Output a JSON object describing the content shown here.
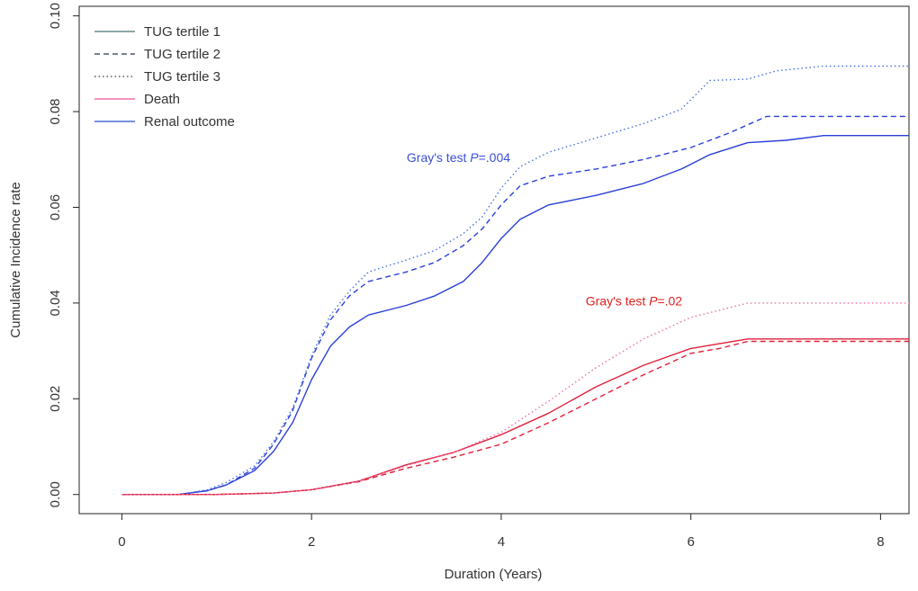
{
  "chart_data": {
    "type": "line",
    "title": "",
    "xlabel": "Duration (Years)",
    "ylabel": "Cumulative Incidence rate",
    "xlim": [
      -0.45,
      8.3
    ],
    "ylim": [
      -0.004,
      0.102
    ],
    "x_ticks": [
      0,
      2,
      4,
      6,
      8
    ],
    "x_tick_labels": [
      "0",
      "2",
      "4",
      "6",
      "8"
    ],
    "y_ticks": [
      0.0,
      0.02,
      0.04,
      0.06,
      0.08,
      0.1
    ],
    "y_tick_labels": [
      "0.00",
      "0.02",
      "0.04",
      "0.06",
      "0.08",
      "0.10"
    ],
    "grid": false,
    "legend_position": "top-left",
    "legend": [
      {
        "label": "TUG tertile 1",
        "color": "#6f8a8c",
        "dash": "solid"
      },
      {
        "label": "TUG tertile 2",
        "color": "#4a5a6a",
        "dash": "dashed"
      },
      {
        "label": "TUG tertile 3",
        "color": "#4a5a6a",
        "dash": "dotted"
      },
      {
        "label": "Death",
        "color": "#ee6fa8",
        "dash": "solid"
      },
      {
        "label": "Renal outcome",
        "color": "#4a6fd8",
        "dash": "solid"
      }
    ],
    "annotations": [
      {
        "prefix": "Gray's test ",
        "italic": "P",
        "suffix": "=.004",
        "color": "#3a4fd8",
        "x": 3.55,
        "y": 0.0695
      },
      {
        "prefix": "Gray's test ",
        "italic": "P",
        "suffix": "=.02",
        "color": "#e02020",
        "x": 5.4,
        "y": 0.0395
      }
    ],
    "series": [
      {
        "name": "Renal outcome - TUG tertile 1",
        "color": "#2a3fd8",
        "dash": "solid",
        "x": [
          0,
          0.6,
          0.9,
          1.1,
          1.4,
          1.6,
          1.8,
          2.0,
          2.2,
          2.4,
          2.6,
          3.0,
          3.3,
          3.6,
          3.8,
          4.0,
          4.2,
          4.5,
          5.0,
          5.5,
          5.9,
          6.2,
          6.6,
          7.0,
          7.4,
          8.3
        ],
        "y": [
          0,
          0,
          0.0008,
          0.002,
          0.005,
          0.009,
          0.015,
          0.024,
          0.031,
          0.035,
          0.0375,
          0.0395,
          0.0415,
          0.0445,
          0.0485,
          0.0535,
          0.0575,
          0.0605,
          0.0625,
          0.065,
          0.068,
          0.071,
          0.0735,
          0.074,
          0.075,
          0.075
        ]
      },
      {
        "name": "Renal outcome - TUG tertile 2",
        "color": "#2a3fd8",
        "dash": "dashed",
        "x": [
          0,
          0.6,
          0.9,
          1.1,
          1.4,
          1.6,
          1.8,
          2.0,
          2.2,
          2.4,
          2.6,
          3.0,
          3.3,
          3.6,
          3.8,
          4.0,
          4.2,
          4.5,
          5.0,
          5.5,
          6.0,
          6.4,
          6.8,
          7.2,
          8.3
        ],
        "y": [
          0,
          0,
          0.0008,
          0.002,
          0.0055,
          0.0105,
          0.0175,
          0.0285,
          0.0365,
          0.0415,
          0.0445,
          0.0465,
          0.0485,
          0.052,
          0.0555,
          0.0605,
          0.0645,
          0.0665,
          0.068,
          0.07,
          0.0725,
          0.0755,
          0.079,
          0.079,
          0.079
        ]
      },
      {
        "name": "Renal outcome - TUG tertile 3",
        "color": "#4a6fe0",
        "dash": "dotted",
        "x": [
          0,
          0.6,
          0.9,
          1.1,
          1.4,
          1.6,
          1.8,
          2.0,
          2.2,
          2.4,
          2.6,
          3.0,
          3.3,
          3.6,
          3.8,
          4.0,
          4.2,
          4.5,
          5.0,
          5.5,
          5.9,
          6.2,
          6.6,
          6.9,
          7.4,
          8.3
        ],
        "y": [
          0,
          0,
          0.001,
          0.0025,
          0.006,
          0.011,
          0.018,
          0.029,
          0.0375,
          0.0425,
          0.0465,
          0.049,
          0.051,
          0.0545,
          0.058,
          0.064,
          0.0685,
          0.0715,
          0.0745,
          0.0775,
          0.0805,
          0.0865,
          0.0868,
          0.0885,
          0.0895,
          0.0895
        ]
      },
      {
        "name": "Death - TUG tertile 1",
        "color": "#e0203a",
        "dash": "solid",
        "x": [
          0,
          1.0,
          1.6,
          2.0,
          2.5,
          3.0,
          3.5,
          4.0,
          4.5,
          5.0,
          5.5,
          6.0,
          6.3,
          6.6,
          8.3
        ],
        "y": [
          0,
          0,
          0.0003,
          0.001,
          0.0028,
          0.0062,
          0.0088,
          0.0125,
          0.017,
          0.0225,
          0.027,
          0.0305,
          0.0315,
          0.0325,
          0.0325
        ]
      },
      {
        "name": "Death - TUG tertile 2",
        "color": "#e0203a",
        "dash": "dashed",
        "x": [
          0,
          1.0,
          1.6,
          2.0,
          2.5,
          3.0,
          3.5,
          4.0,
          4.5,
          5.0,
          5.5,
          6.0,
          6.3,
          6.6,
          8.3
        ],
        "y": [
          0,
          0,
          0.0003,
          0.001,
          0.0027,
          0.0055,
          0.0078,
          0.0105,
          0.015,
          0.02,
          0.025,
          0.0295,
          0.0305,
          0.032,
          0.032
        ]
      },
      {
        "name": "Death - TUG tertile 3",
        "color": "#ee6fa8",
        "dash": "dotted",
        "x": [
          0,
          1.0,
          1.6,
          2.0,
          2.5,
          3.0,
          3.5,
          4.0,
          4.5,
          5.0,
          5.5,
          6.0,
          6.3,
          6.6,
          8.3
        ],
        "y": [
          0,
          0,
          0.0003,
          0.001,
          0.0028,
          0.006,
          0.0088,
          0.013,
          0.0195,
          0.0265,
          0.0325,
          0.037,
          0.0385,
          0.04,
          0.04
        ]
      }
    ]
  }
}
